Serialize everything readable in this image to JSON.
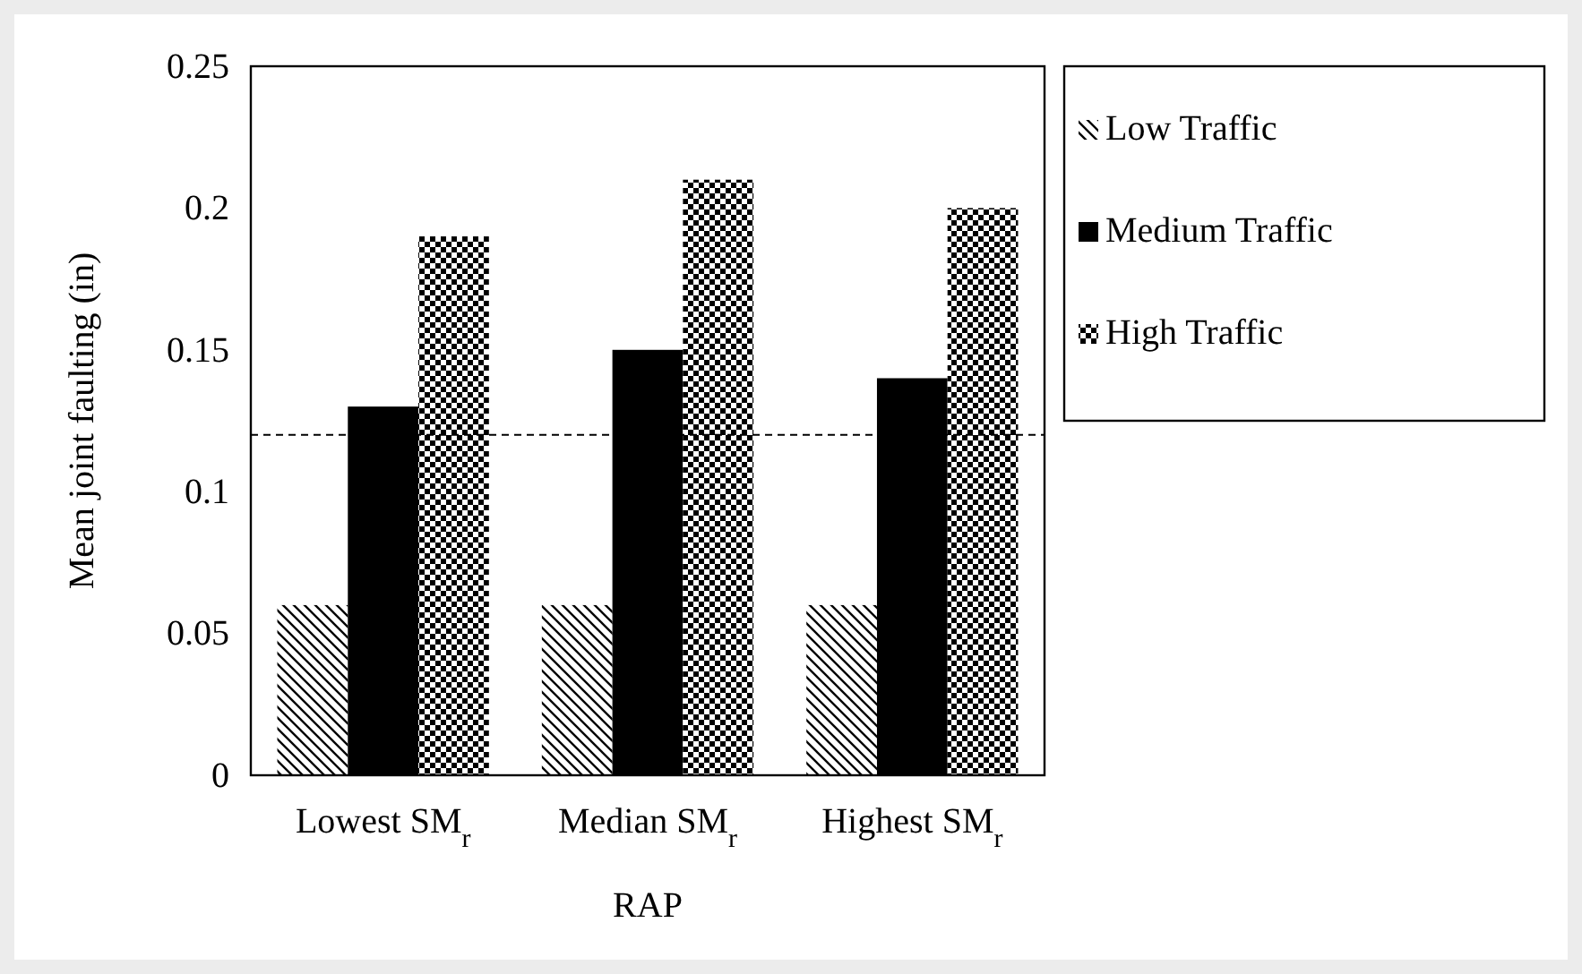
{
  "chart_data": {
    "type": "bar",
    "xlabel": "RAP",
    "ylabel": "Mean joint faulting (in)",
    "categories": [
      "Lowest SM$_{r}$",
      "Median SM$_{r}$",
      "Highest SM$_{r}$"
    ],
    "series": [
      {
        "name": "Low Traffic",
        "color": "#000000",
        "values": [
          0.06,
          0.06,
          0.06
        ]
      },
      {
        "name": "Medium Traffic",
        "color": "#000000",
        "values": [
          0.13,
          0.15,
          0.14
        ]
      },
      {
        "name": "High Traffic",
        "color": "#000000",
        "values": [
          0.19,
          0.21,
          0.2
        ]
      }
    ],
    "ylim": [
      0,
      0.25
    ],
    "yticks": [
      0,
      0.05,
      0.1,
      0.15,
      0.2,
      0.25
    ],
    "ref_lines": [
      {
        "axis": "y",
        "value": 0.12,
        "line_style": "dashed",
        "color": "#000000"
      }
    ],
    "legend": "right",
    "grid": false
  }
}
